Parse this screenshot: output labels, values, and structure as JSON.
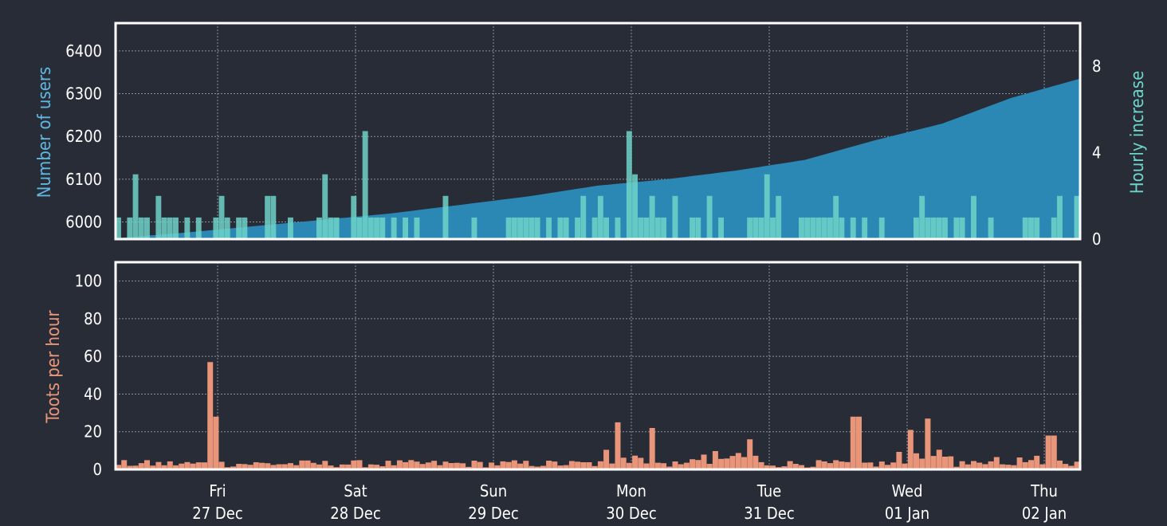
{
  "colors": {
    "background": "#282c37",
    "users_fill": "#2b88b5",
    "hourly_increase": "#6ed3c8",
    "toots": "#e8957a",
    "users_label": "#5fb7e0",
    "hourly_label": "#6ed3c8",
    "toots_label": "#e8957a",
    "frame": "#ffffff",
    "grid": "#8a8f99"
  },
  "chart_data": [
    {
      "type": "area",
      "panel": "top",
      "ylabel": "Number of users",
      "ylim": [
        5960,
        6465
      ],
      "yticks": [
        6000,
        6100,
        6200,
        6300,
        6400
      ],
      "series": [
        {
          "x_hours": [
            0,
            12,
            24,
            36,
            48,
            60,
            72,
            84,
            96,
            108,
            120,
            132,
            144,
            156,
            168,
            170
          ],
          "values": [
            5962,
            5975,
            5990,
            6005,
            6020,
            6040,
            6060,
            6085,
            6100,
            6120,
            6145,
            6190,
            6230,
            6290,
            6335,
            6345
          ]
        }
      ],
      "y2label": "Hourly increase",
      "y2lim": [
        0,
        10
      ],
      "y2ticks": [
        0,
        4,
        8
      ],
      "grid": true
    },
    {
      "type": "bar",
      "panel": "bottom",
      "ylabel": "Toots per hour",
      "ylim": [
        0,
        110
      ],
      "yticks": [
        0,
        20,
        40,
        60,
        80,
        100
      ],
      "grid": true
    }
  ],
  "x_axis": {
    "days": [
      {
        "weekday": "Fri",
        "date": "27 Dec"
      },
      {
        "weekday": "Sat",
        "date": "28 Dec"
      },
      {
        "weekday": "Sun",
        "date": "29 Dec"
      },
      {
        "weekday": "Mon",
        "date": "30 Dec"
      },
      {
        "weekday": "Tue",
        "date": "31 Dec"
      },
      {
        "weekday": "Wed",
        "date": "01 Jan"
      },
      {
        "weekday": "Thu",
        "date": "02 Jan"
      }
    ]
  }
}
